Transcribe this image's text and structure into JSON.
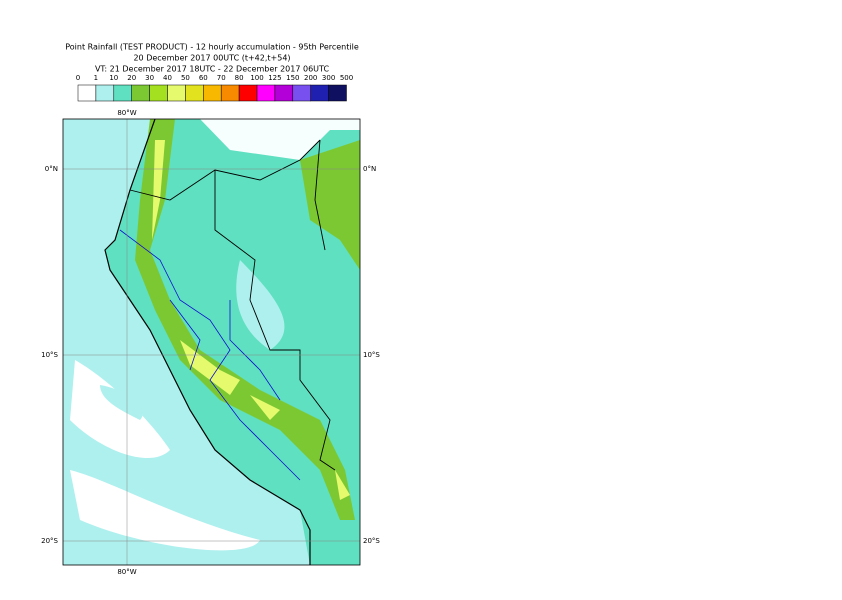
{
  "header": {
    "title": "Point Rainfall (TEST PRODUCT) - 12 hourly accumulation - 95th Percentile",
    "base_time": "20 December 2017 00UTC (t+42,t+54)",
    "valid_time": "VT: 21 December 2017 18UTC - 22 December 2017 06UTC"
  },
  "legend": {
    "thresholds": [
      0,
      1,
      10,
      20,
      30,
      40,
      50,
      60,
      70,
      80,
      100,
      125,
      150,
      200,
      300,
      500
    ],
    "colors": [
      "#ffffff",
      "#aef0ee",
      "#5fe0c0",
      "#7cc832",
      "#a4e020",
      "#e6fa6e",
      "#e2e21e",
      "#f8b800",
      "#f88a00",
      "#ff0000",
      "#ff00ff",
      "#b400d8",
      "#7850f0",
      "#2020b0",
      "#101060"
    ]
  },
  "map": {
    "lat_labels": [
      "0°N",
      "10°S",
      "20°S"
    ],
    "lon_labels": [
      "80°W"
    ]
  }
}
